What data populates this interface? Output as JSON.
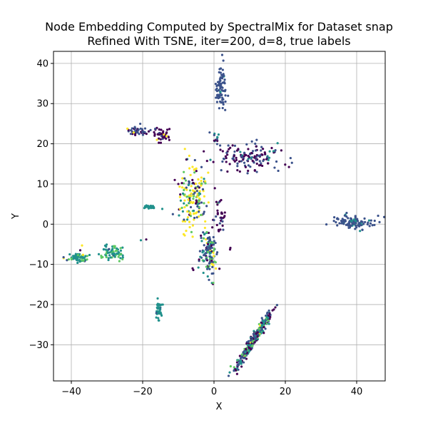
{
  "chart_data": {
    "type": "scatter",
    "title_lines": [
      "Node Embedding Computed by SpectralMix for Dataset snap",
      "Refined With TSNE, iter=200, d=8, true labels"
    ],
    "xlabel": "X",
    "ylabel": "Y",
    "xlim": [
      -45,
      48
    ],
    "ylim": [
      -39,
      43
    ],
    "xticks": [
      -40,
      -20,
      0,
      20,
      40
    ],
    "yticks": [
      -30,
      -20,
      -10,
      0,
      10,
      20,
      30,
      40
    ],
    "grid": true,
    "colormap": "viridis",
    "colors": {
      "c0": "#440154",
      "c1": "#3b528b",
      "c2": "#21918c",
      "c3": "#5ec962",
      "c4": "#fde725"
    },
    "clusters": [
      {
        "cx": 2,
        "cy": 34,
        "sx": 0.7,
        "sy": 2.8,
        "n": 80,
        "mix": {
          "c1": 0.95,
          "c2": 0.05
        }
      },
      {
        "cx": -21.5,
        "cy": 23.3,
        "sx": 1.6,
        "sy": 0.7,
        "n": 45,
        "mix": {
          "c1": 0.65,
          "c0": 0.3,
          "c4": 0.05
        }
      },
      {
        "cx": -14.5,
        "cy": 22.5,
        "sx": 1.4,
        "sy": 1.1,
        "n": 40,
        "mix": {
          "c0": 0.85,
          "c1": 0.1,
          "c4": 0.05
        }
      },
      {
        "cx": 10.5,
        "cy": 16.8,
        "sx": 4.3,
        "sy": 1.6,
        "n": 140,
        "mix": {
          "c0": 0.5,
          "c1": 0.45,
          "c2": 0.05
        }
      },
      {
        "cx": 0.5,
        "cy": 21.5,
        "sx": 0.6,
        "sy": 0.9,
        "n": 12,
        "mix": {
          "c2": 0.5,
          "c1": 0.3,
          "c0": 0.2
        }
      },
      {
        "cx": -6,
        "cy": 6.5,
        "sx": 2.2,
        "sy": 3.5,
        "n": 170,
        "mix": {
          "c4": 0.35,
          "c3": 0.25,
          "c1": 0.15,
          "c0": 0.1,
          "c2": 0.15
        }
      },
      {
        "cx": -18,
        "cy": 4.3,
        "sx": 0.6,
        "sy": 0.25,
        "n": 25,
        "mix": {
          "c2": 1.0
        }
      },
      {
        "cx": 39,
        "cy": 0.5,
        "sx": 2.8,
        "sy": 0.8,
        "n": 100,
        "mix": {
          "c1": 0.85,
          "c2": 0.15
        }
      },
      {
        "cx": 1.5,
        "cy": 1.5,
        "sx": 0.8,
        "sy": 2.0,
        "n": 30,
        "mix": {
          "c0": 0.8,
          "c1": 0.2
        }
      },
      {
        "cx": -1.5,
        "cy": -7,
        "sx": 1.3,
        "sy": 3.0,
        "n": 130,
        "mix": {
          "c1": 0.45,
          "c2": 0.25,
          "c3": 0.12,
          "c4": 0.08,
          "c0": 0.1
        }
      },
      {
        "cx": -38,
        "cy": -8.3,
        "sx": 1.5,
        "sy": 0.5,
        "n": 75,
        "mix": {
          "c2": 0.65,
          "c3": 0.2,
          "c1": 0.1,
          "c4": 0.05
        }
      },
      {
        "cx": -28.5,
        "cy": -7,
        "sx": 1.8,
        "sy": 0.9,
        "n": 70,
        "mix": {
          "c2": 0.6,
          "c3": 0.35,
          "c1": 0.05
        }
      },
      {
        "cx": -15.5,
        "cy": -21.3,
        "sx": 0.5,
        "sy": 1.3,
        "n": 40,
        "mix": {
          "c2": 0.9,
          "c1": 0.1
        }
      },
      {
        "cx": 11,
        "cy": -29,
        "sx": 3.4,
        "sy": 3.6,
        "n": 320,
        "mix": {
          "c1": 0.35,
          "c0": 0.25,
          "c2": 0.25,
          "c3": 0.12,
          "c4": 0.03
        }
      }
    ],
    "scatter_points": [
      {
        "x": -8.5,
        "y": -2.5,
        "c": "c4"
      },
      {
        "x": -8.2,
        "y": -2.8,
        "c": "c4"
      },
      {
        "x": -6,
        "y": -11,
        "c": "c0"
      },
      {
        "x": -5.8,
        "y": -11.4,
        "c": "c0"
      },
      {
        "x": 4.5,
        "y": -6.3,
        "c": "c0"
      },
      {
        "x": 4.6,
        "y": -5.9,
        "c": "c0"
      },
      {
        "x": -10,
        "y": 10,
        "c": "c0"
      },
      {
        "x": -11,
        "y": 11,
        "c": "c0"
      },
      {
        "x": -19,
        "y": -3.8,
        "c": "c0"
      },
      {
        "x": -20.5,
        "y": -4,
        "c": "c2"
      },
      {
        "x": -14.5,
        "y": 3.8,
        "c": "c2"
      },
      {
        "x": -37,
        "y": -5.3,
        "c": "c4"
      },
      {
        "x": -37.5,
        "y": -6.5,
        "c": "c0"
      },
      {
        "x": -1,
        "y": 16,
        "c": "c2"
      },
      {
        "x": -3.5,
        "y": 14.2,
        "c": "c1"
      },
      {
        "x": 2,
        "y": 6,
        "c": "c0"
      },
      {
        "x": 0,
        "y": 1,
        "c": "c1"
      },
      {
        "x": -16,
        "y": 21,
        "c": "c4"
      },
      {
        "x": 1.8,
        "y": 18.5,
        "c": "c0"
      },
      {
        "x": -2,
        "y": -2,
        "c": "c3"
      }
    ]
  }
}
